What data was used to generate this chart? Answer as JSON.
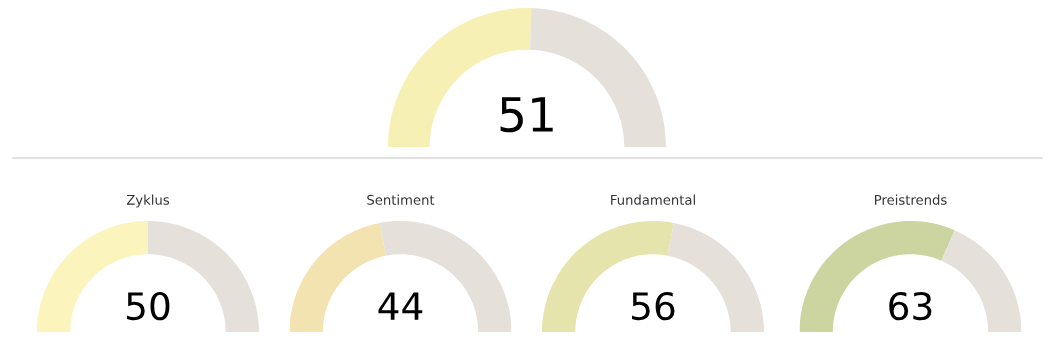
{
  "chart_data": [
    {
      "type": "donut",
      "categories": [
        null,
        null
      ],
      "values": [
        51,
        49
      ],
      "colors": [
        "#f7f0b5",
        "#e5e0da"
      ],
      "value_labels": [
        "51",
        null
      ]
    },
    {
      "type": "donut",
      "title": "Zyklus",
      "categories": [
        null,
        null
      ],
      "values": [
        50,
        50
      ],
      "colors": [
        "#fcf4bd",
        "#e5e0da"
      ],
      "value_labels": [
        "50",
        null
      ]
    },
    {
      "type": "donut",
      "title": "Sentiment",
      "categories": [
        null,
        null
      ],
      "values": [
        44,
        56
      ],
      "colors": [
        "#f3e3b0",
        "#e5e0da"
      ],
      "value_labels": [
        "44",
        null
      ]
    },
    {
      "type": "donut",
      "title": "Fundamental",
      "categories": [
        null,
        null
      ],
      "values": [
        56,
        44
      ],
      "colors": [
        "#e5e4ad",
        "#e5e0da"
      ],
      "value_labels": [
        "56",
        null
      ]
    },
    {
      "type": "donut",
      "title": "Preistrends",
      "categories": [
        null,
        null
      ],
      "values": [
        63,
        37
      ],
      "colors": [
        "#ccd49f",
        "#e5e0da"
      ],
      "value_labels": [
        "63",
        null
      ]
    }
  ]
}
